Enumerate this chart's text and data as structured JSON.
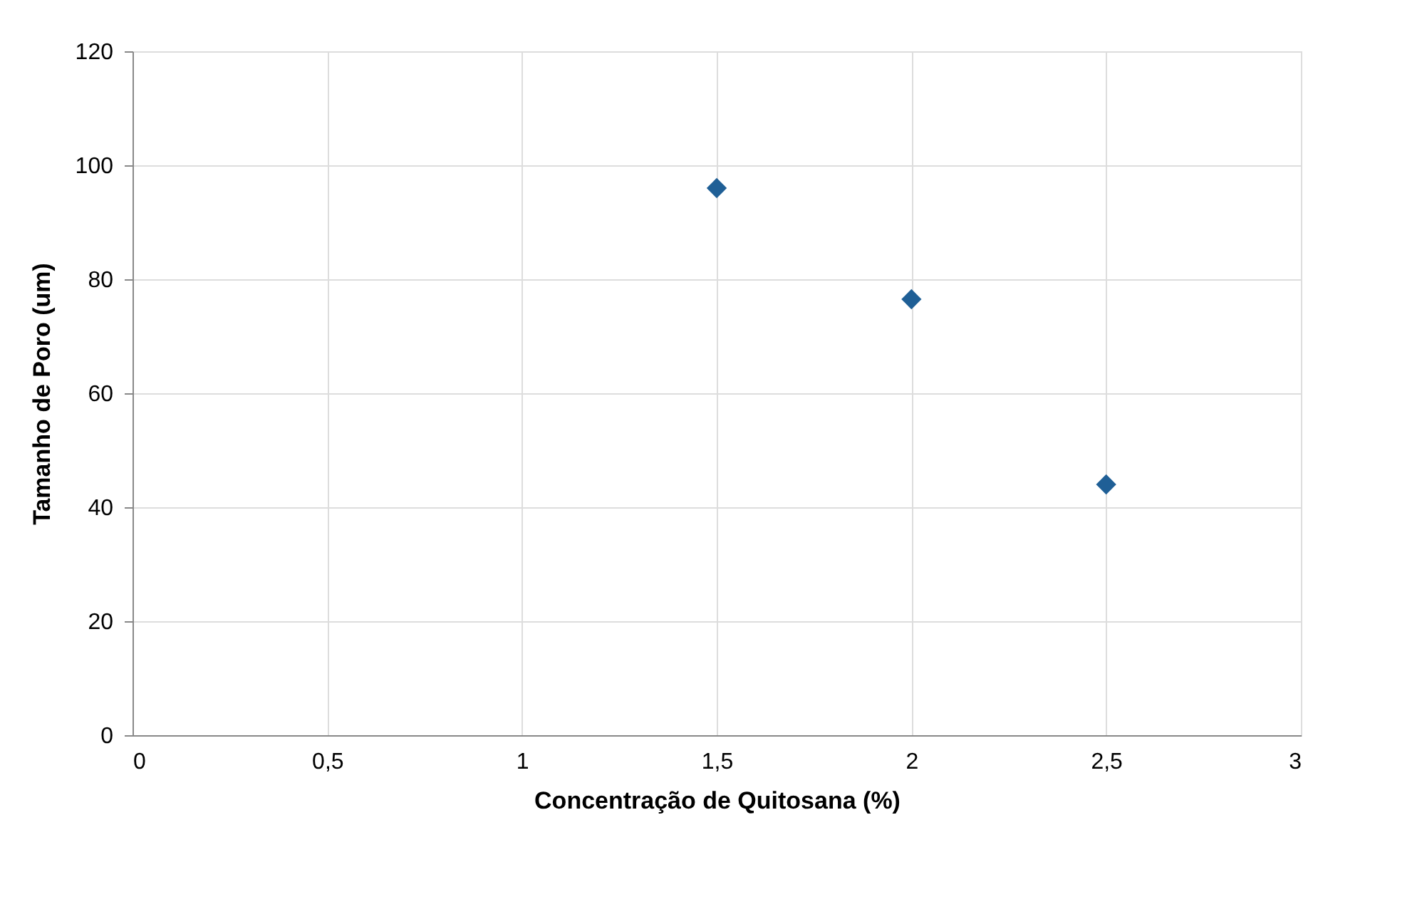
{
  "chart_data": {
    "type": "scatter",
    "xlabel": "Concentração de Quitosana (%)",
    "ylabel": "Tamanho de Poro (um)",
    "x": [
      1.5,
      2,
      2.5
    ],
    "series": [
      {
        "color": "#1f5f96",
        "values": [
          96,
          76.5,
          44
        ]
      }
    ],
    "xlim": [
      0,
      3
    ],
    "xticks": [
      0,
      {
        "value": 0.5,
        "label": "0,5"
      },
      1,
      {
        "value": 1.5,
        "label": "1,5"
      },
      2,
      {
        "value": 2.5,
        "label": "2,5"
      },
      3
    ],
    "ylim": [
      0,
      120
    ],
    "yticks": [
      0,
      20,
      40,
      60,
      80,
      100,
      120
    ],
    "grid": true,
    "marker": "diamond",
    "legend": false
  }
}
